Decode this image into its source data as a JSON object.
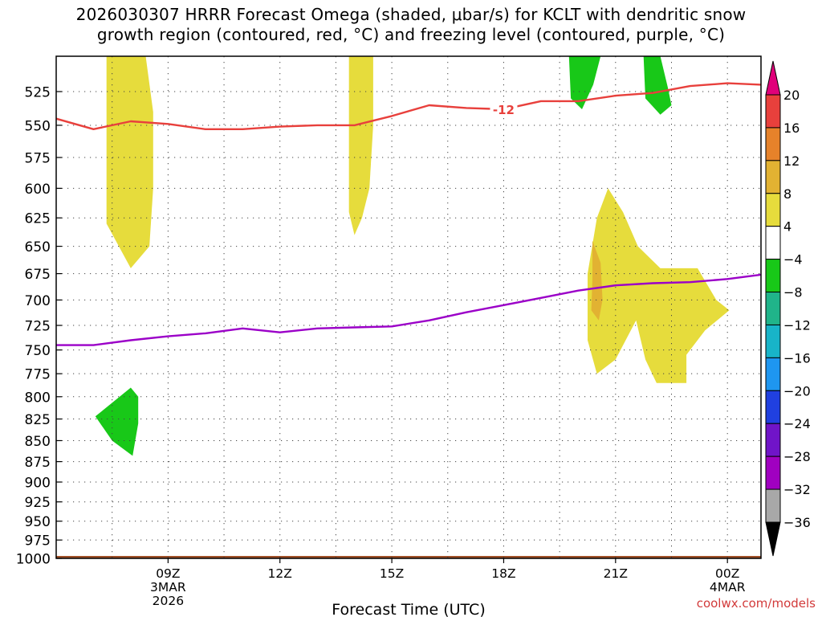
{
  "title": {
    "line1": "2026030307 HRRR Forecast Omega (shaded, μbar/s) for KCLT with dendritic snow",
    "line2": "growth region (contoured, red, °C) and freezing level (contoured, purple, °C)"
  },
  "watermark": "coolwx.com/models",
  "chart_data": {
    "type": "heatmap",
    "xlabel": "Forecast Time (UTC)",
    "ylabel": "",
    "x_unit": "hours",
    "xlim": [
      6.0,
      24.9
    ],
    "ylim": [
      1000,
      500
    ],
    "y_scale": "log-pressure",
    "grid": true,
    "x_ticks": [
      {
        "x": 9,
        "label": "09Z",
        "sub": [
          "3MAR",
          "2026"
        ]
      },
      {
        "x": 12,
        "label": "12Z",
        "sub": []
      },
      {
        "x": 15,
        "label": "15Z",
        "sub": []
      },
      {
        "x": 18,
        "label": "18Z",
        "sub": []
      },
      {
        "x": 21,
        "label": "21Z",
        "sub": []
      },
      {
        "x": 24,
        "label": "00Z",
        "sub": [
          "4MAR"
        ]
      }
    ],
    "x_minor_grid": [
      7.5,
      10.5,
      13.5,
      16.5,
      19.5,
      22.5
    ],
    "y_ticks": [
      525,
      550,
      575,
      600,
      625,
      650,
      675,
      700,
      725,
      750,
      775,
      800,
      825,
      850,
      875,
      900,
      925,
      950,
      975,
      1000
    ],
    "legend": {
      "placement": "right",
      "levels": [
        20,
        16,
        12,
        8,
        4,
        -4,
        -8,
        -12,
        -16,
        -20,
        -24,
        -28,
        -32,
        -36
      ],
      "colors": [
        "#e0007a",
        "#e8403c",
        "#e6822a",
        "#e2b232",
        "#e6dc3c",
        "#ffffff",
        "#18c818",
        "#20b48a",
        "#18b4c8",
        "#1e96f0",
        "#2040e0",
        "#7014c8",
        "#a000c0",
        "#a8a8a8",
        "#000000"
      ]
    },
    "shaded_regions": [
      {
        "range": [
          4,
          8
        ],
        "color": "#e6dc3c",
        "polygon": [
          [
            7.35,
            500
          ],
          [
            8.4,
            500
          ],
          [
            8.6,
            540
          ],
          [
            8.6,
            600
          ],
          [
            8.5,
            650
          ],
          [
            8.0,
            670
          ],
          [
            7.35,
            630
          ]
        ]
      },
      {
        "range": [
          4,
          8
        ],
        "color": "#e6dc3c",
        "polygon": [
          [
            13.85,
            500
          ],
          [
            14.5,
            500
          ],
          [
            14.5,
            550
          ],
          [
            14.4,
            600
          ],
          [
            14.2,
            625
          ],
          [
            14.0,
            640
          ],
          [
            13.85,
            620
          ]
        ]
      },
      {
        "range": [
          4,
          8
        ],
        "color": "#e6dc3c",
        "polygon": [
          [
            20.8,
            600
          ],
          [
            21.2,
            620
          ],
          [
            21.6,
            650
          ],
          [
            22.2,
            670
          ],
          [
            23.2,
            670
          ],
          [
            23.7,
            700
          ],
          [
            24.05,
            710
          ],
          [
            23.4,
            730
          ],
          [
            22.9,
            755
          ],
          [
            22.9,
            785
          ],
          [
            22.1,
            785
          ],
          [
            21.8,
            760
          ],
          [
            21.55,
            720
          ],
          [
            21.0,
            760
          ],
          [
            20.5,
            775
          ],
          [
            20.25,
            740
          ],
          [
            20.25,
            675
          ],
          [
            20.5,
            625
          ]
        ]
      },
      {
        "range": [
          8,
          12
        ],
        "color": "#e2b232",
        "polygon": [
          [
            20.38,
            645
          ],
          [
            20.6,
            665
          ],
          [
            20.65,
            700
          ],
          [
            20.55,
            720
          ],
          [
            20.35,
            710
          ],
          [
            20.38,
            680
          ]
        ]
      },
      {
        "range": [
          -8,
          -4
        ],
        "color": "#18c818",
        "polygon": [
          [
            7.05,
            822
          ],
          [
            8.0,
            790
          ],
          [
            8.2,
            800
          ],
          [
            8.2,
            830
          ],
          [
            8.05,
            868
          ],
          [
            7.5,
            850
          ]
        ]
      },
      {
        "range": [
          -8,
          -4
        ],
        "color": "#18c818",
        "polygon": [
          [
            19.75,
            500
          ],
          [
            20.6,
            500
          ],
          [
            20.4,
            520
          ],
          [
            20.1,
            538
          ],
          [
            19.8,
            530
          ]
        ]
      },
      {
        "range": [
          -8,
          -4
        ],
        "color": "#18c818",
        "polygon": [
          [
            21.75,
            500
          ],
          [
            22.2,
            500
          ],
          [
            22.4,
            522
          ],
          [
            22.5,
            535
          ],
          [
            22.2,
            542
          ],
          [
            21.8,
            530
          ]
        ]
      }
    ],
    "contours": [
      {
        "name": "dendritic snow growth region",
        "level": -12,
        "label": "-12",
        "label_at": [
          18.0,
          538
        ],
        "color": "#e8403c",
        "x": [
          6.0,
          7.0,
          8.0,
          9.0,
          10.0,
          11.0,
          12.0,
          13.0,
          14.0,
          15.0,
          16.0,
          17.0,
          18.0,
          19.0,
          20.0,
          21.0,
          22.0,
          23.0,
          24.0,
          24.9
        ],
        "y": [
          545,
          553,
          547,
          549,
          553,
          553,
          551,
          550,
          550,
          543,
          535,
          537,
          538,
          532,
          532,
          528,
          526,
          521,
          519,
          520
        ]
      },
      {
        "name": "freezing level",
        "level": 0,
        "label": "",
        "color": "#9b00c8",
        "x": [
          6.0,
          7.0,
          8.0,
          9.0,
          10.0,
          11.0,
          12.0,
          13.0,
          14.0,
          15.0,
          16.0,
          17.0,
          18.0,
          19.0,
          20.0,
          21.0,
          22.0,
          23.0,
          24.0,
          24.9
        ],
        "y": [
          745,
          745,
          740,
          736,
          733,
          728,
          732,
          728,
          727,
          726,
          720,
          712,
          705,
          698,
          691,
          686,
          684,
          683,
          680,
          676
        ]
      }
    ],
    "terrain": {
      "color": "#a05028",
      "x": [
        6.0,
        7.0,
        8.0,
        9.0,
        12.0,
        18.0,
        21.0,
        22.0,
        24.9
      ],
      "top": [
        1002,
        1000,
        1000,
        1002,
        1002,
        1001,
        999,
        998,
        998
      ]
    }
  }
}
